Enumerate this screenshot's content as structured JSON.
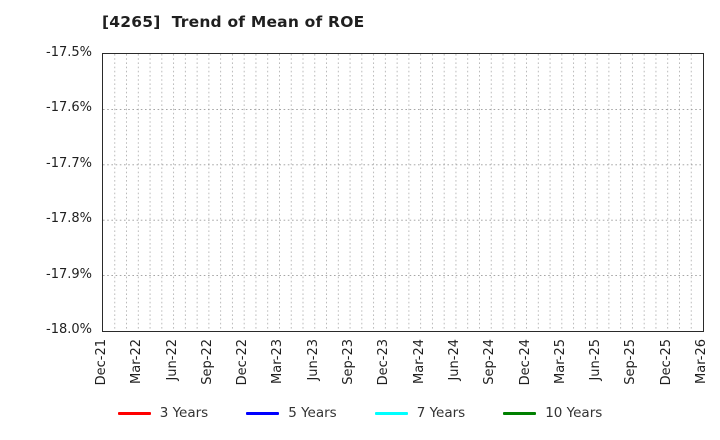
{
  "chart_data": {
    "type": "line",
    "title": "[4265]  Trend of Mean of ROE",
    "categories": [
      "Dec-21",
      "Mar-22",
      "Jun-22",
      "Sep-22",
      "Dec-22",
      "Mar-23",
      "Jun-23",
      "Sep-23",
      "Dec-23",
      "Mar-24",
      "Jun-24",
      "Sep-24",
      "Dec-24",
      "Mar-25",
      "Jun-25",
      "Sep-25",
      "Dec-25",
      "Mar-26"
    ],
    "series": [
      {
        "name": "3 Years",
        "color": "#ff0000",
        "values": []
      },
      {
        "name": "5 Years",
        "color": "#0000ff",
        "values": []
      },
      {
        "name": "7 Years",
        "color": "#00ffff",
        "values": []
      },
      {
        "name": "10 Years",
        "color": "#008000",
        "values": []
      }
    ],
    "xlabel": "",
    "ylabel": "",
    "ylim": [
      -18.0,
      -17.5
    ],
    "yticks": [
      "-17.5%",
      "-17.6%",
      "-17.7%",
      "-17.8%",
      "-17.9%",
      "-18.0%"
    ],
    "grid": true,
    "x_minor_gridlines_per_tick_interval": 3,
    "legend_position": "bottom"
  },
  "style": {
    "grid_color_vertical": "#b4b4b4",
    "grid_color_horizontal": "#9a9a9a",
    "axis_border_color": "#2a2a2a",
    "text_color": "#1f1f1f"
  }
}
